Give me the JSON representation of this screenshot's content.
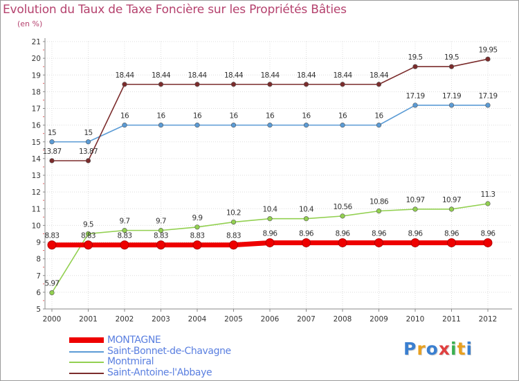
{
  "title": "Evolution du Taux de Taxe Foncière sur les Propriétés Bâties",
  "unit": "(en %)",
  "logo": "Proxiti",
  "chart_data": {
    "type": "line",
    "x": [
      "2000",
      "2001",
      "2002",
      "2003",
      "2004",
      "2005",
      "2006",
      "2007",
      "2008",
      "2009",
      "2010",
      "2011",
      "2012"
    ],
    "ylim": [
      5,
      21
    ],
    "yticks": [
      5,
      6,
      7,
      8,
      9,
      10,
      11,
      12,
      13,
      14,
      15,
      16,
      17,
      18,
      19,
      20,
      21
    ],
    "series": [
      {
        "name": "MONTAGNE",
        "color": "#ee0000",
        "width": "thick",
        "values": [
          8.83,
          8.83,
          8.83,
          8.83,
          8.83,
          8.83,
          8.96,
          8.96,
          8.96,
          8.96,
          8.96,
          8.96,
          8.96
        ],
        "labels": [
          "8.83",
          "8.83",
          "8.83",
          "8.83",
          "8.83",
          "8.83",
          "8.96",
          "8.96",
          "8.96",
          "8.96",
          "8.96",
          "8.96",
          "8.96"
        ]
      },
      {
        "name": "Saint-Bonnet-de-Chavagne",
        "color": "#5b9bd5",
        "width": "thin",
        "values": [
          15,
          15,
          16,
          16,
          16,
          16,
          16,
          16,
          16,
          16,
          17.19,
          17.19,
          17.19
        ],
        "labels": [
          "15",
          "15",
          "16",
          "16",
          "16",
          "16",
          "16",
          "16",
          "16",
          "16",
          "17.19",
          "17.19",
          "17.19"
        ]
      },
      {
        "name": "Montmiral",
        "color": "#92d050",
        "width": "thin",
        "values": [
          5.97,
          9.5,
          9.7,
          9.7,
          9.9,
          10.2,
          10.4,
          10.4,
          10.56,
          10.86,
          10.97,
          10.97,
          11.3
        ],
        "labels": [
          "5.97",
          "9.5",
          "9.7",
          "9.7",
          "9.9",
          "10.2",
          "10.4",
          "10.4",
          "10.56",
          "10.86",
          "10.97",
          "10.97",
          "11.3"
        ]
      },
      {
        "name": "Saint-Antoine-l'Abbaye",
        "color": "#7b2c2c",
        "width": "thin",
        "values": [
          13.87,
          13.87,
          18.44,
          18.44,
          18.44,
          18.44,
          18.44,
          18.44,
          18.44,
          18.44,
          19.5,
          19.5,
          19.95
        ],
        "labels": [
          "13.87",
          "13.87",
          "18.44",
          "18.44",
          "18.44",
          "18.44",
          "18.44",
          "18.44",
          "18.44",
          "18.44",
          "19.5",
          "19.5",
          "19.95"
        ]
      }
    ]
  }
}
